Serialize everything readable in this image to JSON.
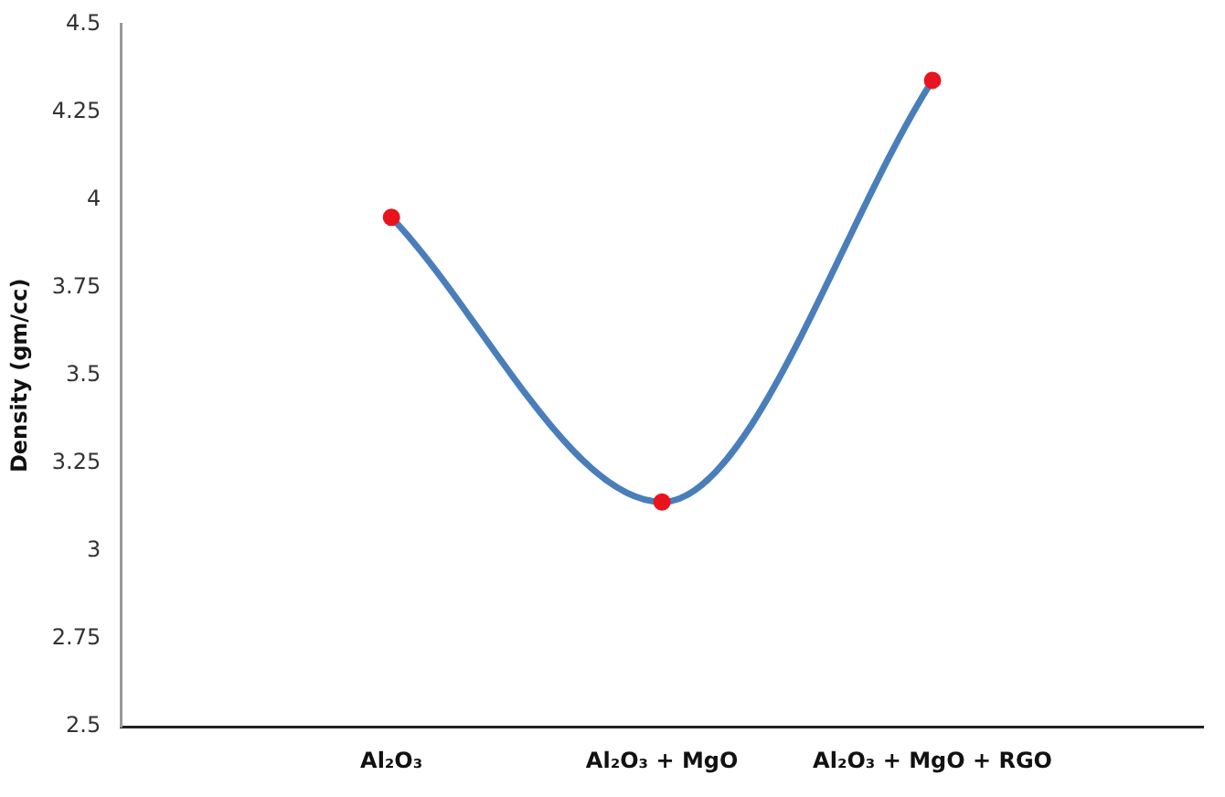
{
  "chart_data": {
    "type": "line",
    "ylabel": "Density (gm/cc)",
    "categories": [
      null,
      "Al₂O₃",
      "Al₂O₃ + MgO",
      "Al₂O₃ + MgO + RGO",
      null
    ],
    "series": [
      {
        "color": "#4a7ebb",
        "colors": [
          "#e8141e",
          "#e8141e",
          "#e8141e",
          "#e8141e",
          "#e8141e"
        ],
        "values": [
          null,
          3.95,
          3.14,
          4.34,
          null
        ]
      }
    ],
    "ylim": [
      2.5,
      4.5
    ],
    "yticks": [
      2.5,
      2.75,
      3,
      3.25,
      3.5,
      3.75,
      4,
      4.25,
      4.5
    ],
    "grid": false,
    "legend": false,
    "marker": "circle",
    "line_style": "solid"
  }
}
